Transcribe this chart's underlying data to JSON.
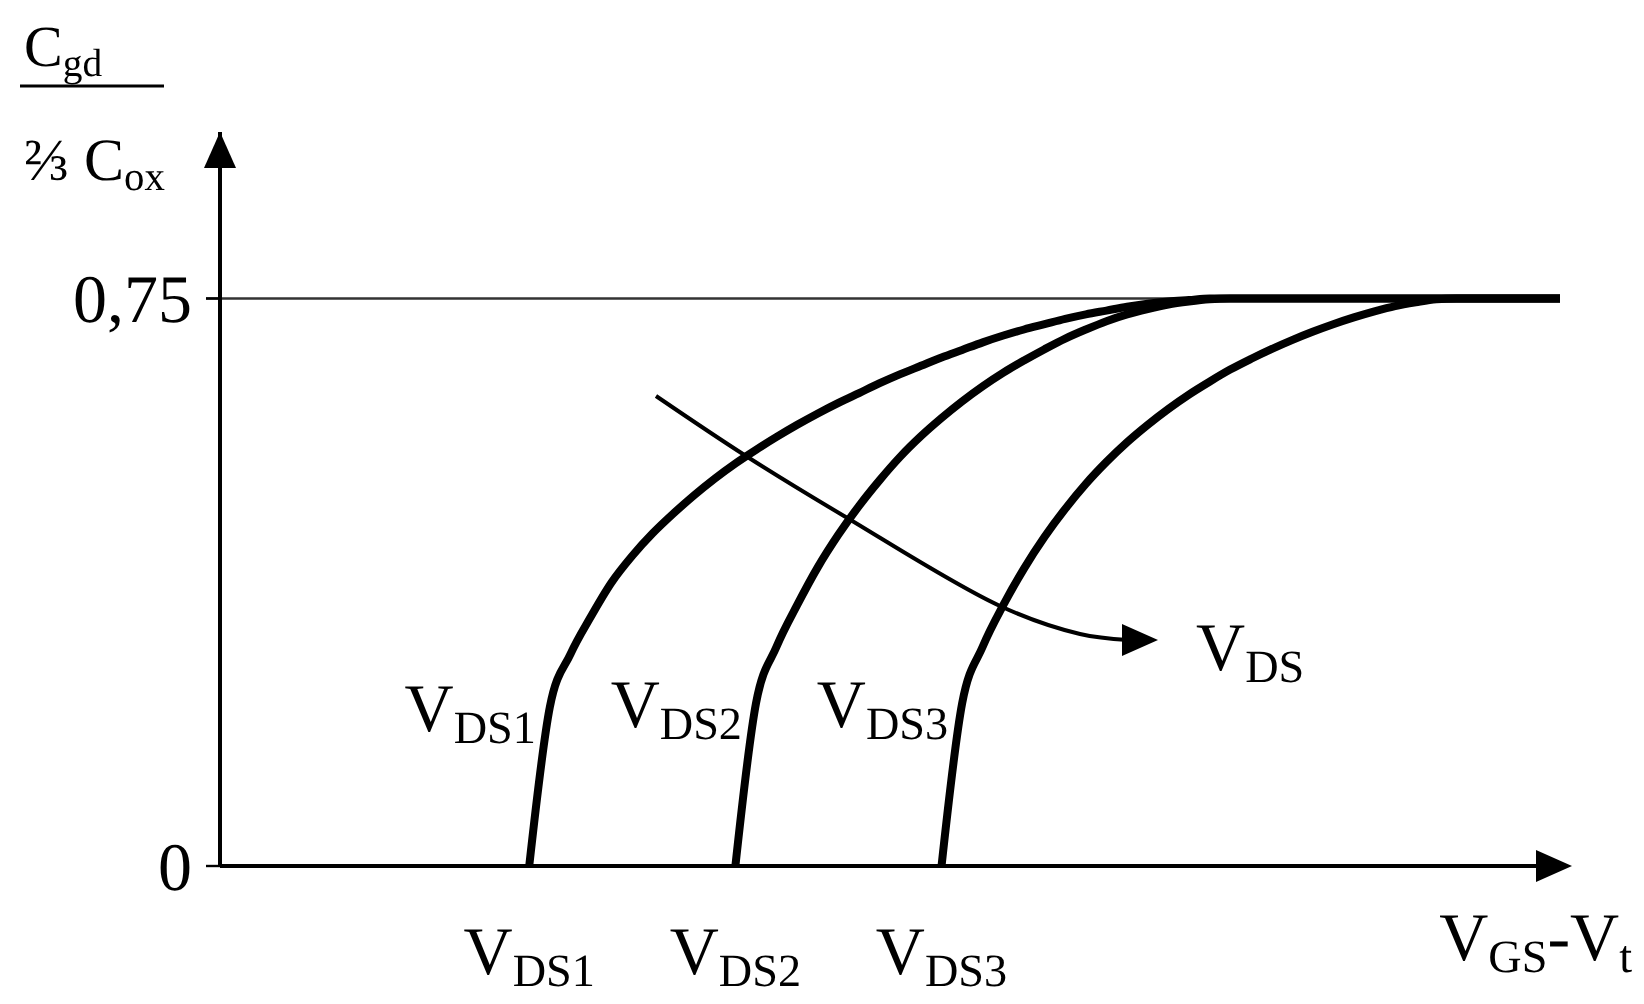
{
  "chart_data": {
    "type": "line",
    "xlabel": "V$_{GS}$-V$_{t}$",
    "ylabel": "C$_{gd}$\n⅔ C$_{ox}$",
    "ylim": [
      0,
      0.97
    ],
    "yticks": [
      {
        "value": 0,
        "label": "0"
      },
      {
        "value": 0.75,
        "label": "0,75"
      }
    ],
    "line_style": "solid",
    "categories": [
      null,
      null,
      null,
      null,
      null,
      null,
      null,
      null,
      null,
      null,
      null,
      null,
      null,
      null,
      null,
      "V$_{DS1}$",
      null,
      null,
      null,
      null,
      null,
      null,
      null,
      null,
      null,
      "V$_{DS2}$",
      null,
      null,
      null,
      null,
      null,
      null,
      null,
      null,
      null,
      "V$_{DS3}$",
      null,
      null,
      null,
      null,
      null,
      null,
      null,
      null,
      null,
      null,
      null,
      null,
      null,
      null,
      null,
      null,
      null,
      null,
      null,
      null,
      null,
      null,
      null,
      null,
      null,
      null,
      null,
      null,
      null,
      null
    ],
    "series": [
      {
        "name": "V$_{DS1}$",
        "color": "#000000",
        "values": [
          null,
          null,
          null,
          null,
          null,
          null,
          null,
          null,
          null,
          null,
          null,
          null,
          null,
          null,
          null,
          0,
          0.21,
          0.28,
          0.33,
          0.375,
          0.41,
          0.44,
          0.466,
          0.49,
          0.512,
          0.532,
          0.55,
          0.567,
          0.583,
          0.598,
          0.612,
          0.625,
          0.638,
          0.65,
          0.661,
          0.672,
          0.682,
          0.692,
          0.701,
          0.709,
          0.716,
          0.723,
          0.729,
          0.734,
          0.739,
          0.743,
          0.746,
          0.748,
          0.75,
          0.75,
          0.75,
          0.75,
          0.75,
          0.75,
          0.75,
          0.75,
          0.75,
          0.75,
          0.75,
          0.75,
          0.75,
          0.75,
          0.75,
          0.75,
          0.75,
          0.75
        ]
      },
      {
        "name": "V$_{DS2}$",
        "color": "#000000",
        "values": [
          null,
          null,
          null,
          null,
          null,
          null,
          null,
          null,
          null,
          null,
          null,
          null,
          null,
          null,
          null,
          null,
          null,
          null,
          null,
          null,
          null,
          null,
          null,
          null,
          null,
          0,
          0.215,
          0.29,
          0.345,
          0.395,
          0.438,
          0.476,
          0.51,
          0.541,
          0.568,
          0.592,
          0.614,
          0.634,
          0.652,
          0.668,
          0.683,
          0.697,
          0.709,
          0.72,
          0.729,
          0.736,
          0.742,
          0.746,
          0.749,
          0.75,
          0.75,
          0.75,
          0.75,
          0.75,
          0.75,
          0.75,
          0.75,
          0.75,
          0.75,
          0.75,
          0.75,
          0.75,
          0.75,
          0.75,
          0.75,
          0.75
        ]
      },
      {
        "name": "V$_{DS3}$",
        "color": "#000000",
        "values": [
          null,
          null,
          null,
          null,
          null,
          null,
          null,
          null,
          null,
          null,
          null,
          null,
          null,
          null,
          null,
          null,
          null,
          null,
          null,
          null,
          null,
          null,
          null,
          null,
          null,
          null,
          null,
          null,
          null,
          null,
          null,
          null,
          null,
          null,
          null,
          0,
          0.215,
          0.29,
          0.345,
          0.393,
          0.435,
          0.472,
          0.505,
          0.534,
          0.56,
          0.583,
          0.604,
          0.623,
          0.64,
          0.656,
          0.67,
          0.683,
          0.695,
          0.706,
          0.716,
          0.725,
          0.733,
          0.74,
          0.745,
          0.749,
          0.75,
          0.75,
          0.75,
          0.75,
          0.75,
          0.75
        ]
      }
    ],
    "ref_lines": [
      {
        "axis": "y",
        "value": 0.75,
        "color": "#333333"
      }
    ],
    "annotations": [
      "V$_{DS}$"
    ]
  }
}
